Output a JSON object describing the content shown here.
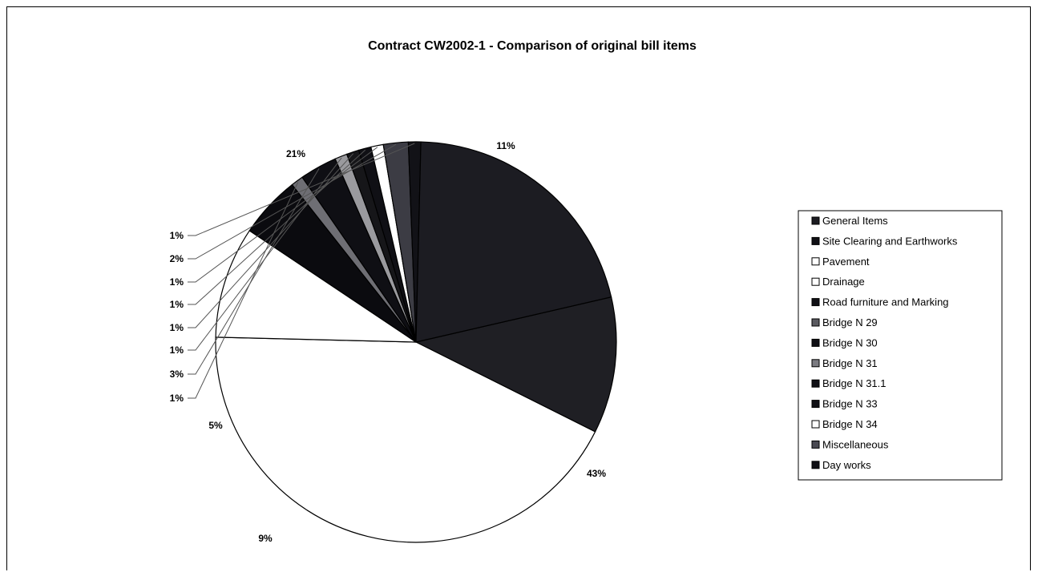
{
  "chart_data": {
    "type": "pie",
    "title": "Contract CW2002-1 - Comparison of original bill items",
    "legend_position": "right",
    "slices": [
      {
        "label": "General Items",
        "value": 11,
        "display": "11%",
        "color": "#1f1f24"
      },
      {
        "label": "Site Clearing and Earthworks",
        "value": 43,
        "display": "43%",
        "color": "#ffffff"
      },
      {
        "label": "Pavement",
        "value": 9,
        "display": "9%",
        "color": "#ffffff"
      },
      {
        "label": "Drainage",
        "value": 5,
        "display": "5%",
        "color": "#0b0b0f"
      },
      {
        "label": "Road furniture and Marking",
        "value": 1,
        "display": "1%",
        "color": "#6e6e74"
      },
      {
        "label": "Bridge N 29",
        "value": 3,
        "display": "3%",
        "color": "#0f0f14"
      },
      {
        "label": "Bridge N 30",
        "value": 1,
        "display": "1%",
        "color": "#9a9a9e"
      },
      {
        "label": "Bridge N 31",
        "value": 1,
        "display": "1%",
        "color": "#161619"
      },
      {
        "label": "Bridge N 31.1",
        "value": 1,
        "display": "1%",
        "color": "#101015"
      },
      {
        "label": "Bridge N 33",
        "value": 1,
        "display": "1%",
        "color": "#ffffff"
      },
      {
        "label": "Bridge N 34",
        "value": 2,
        "display": "2%",
        "color": "#3c3c44"
      },
      {
        "label": "Miscellaneous",
        "value": 1,
        "display": "1%",
        "color": "#121217"
      },
      {
        "label": "Day works",
        "value": 21,
        "display": "21%",
        "color": "#1c1c22"
      }
    ],
    "legend_entries": [
      {
        "label": "General Items",
        "color": "#1c1c22"
      },
      {
        "label": "Site Clearing and Earthworks",
        "color": "#101015"
      },
      {
        "label": "Pavement",
        "color": "#ffffff"
      },
      {
        "label": "Drainage",
        "color": "#ffffff"
      },
      {
        "label": "Road furniture and Marking",
        "color": "#101015"
      },
      {
        "label": "Bridge N 29",
        "color": "#5a5a60"
      },
      {
        "label": "Bridge N 30",
        "color": "#101015"
      },
      {
        "label": "Bridge N 31",
        "color": "#7a7a80"
      },
      {
        "label": "Bridge N 31.1",
        "color": "#101015"
      },
      {
        "label": "Bridge N 33",
        "color": "#101015"
      },
      {
        "label": "Bridge N 34",
        "color": "#ffffff"
      },
      {
        "label": "Miscellaneous",
        "color": "#4a4a52"
      },
      {
        "label": "Day works",
        "color": "#101015"
      }
    ]
  }
}
